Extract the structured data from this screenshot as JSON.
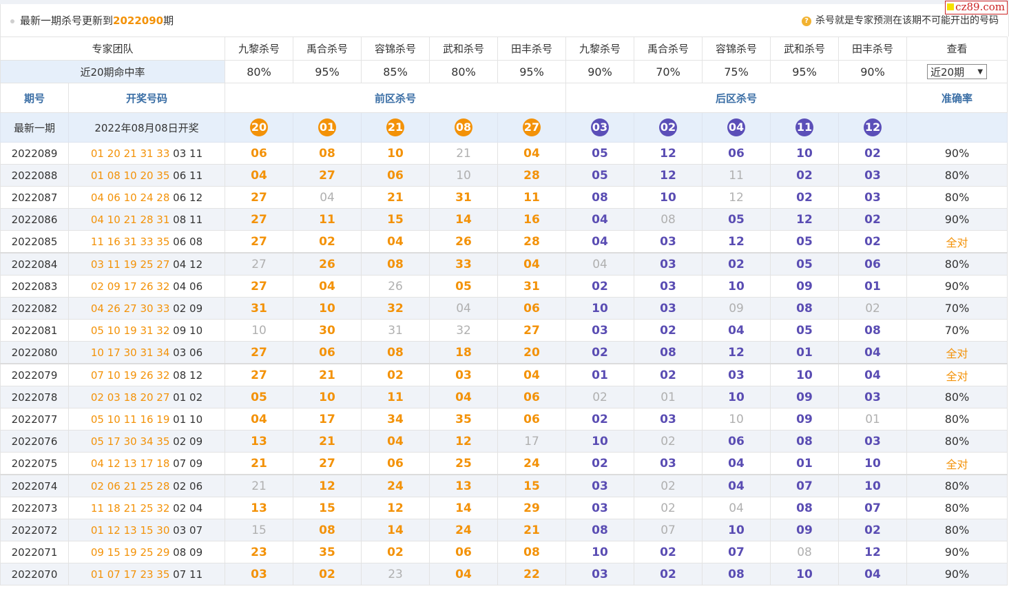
{
  "header": {
    "title_prefix": "最新一期杀号更新到",
    "title_period": "2022090",
    "title_suffix": "期",
    "tip_text": "杀号就是专家预测在该期不可能开出的号码",
    "watermark": "cz89.com"
  },
  "experts_label": "专家团队",
  "experts": [
    "九黎杀号",
    "禹合杀号",
    "容锦杀号",
    "武和杀号",
    "田丰杀号",
    "九黎杀号",
    "禹合杀号",
    "容锦杀号",
    "武和杀号",
    "田丰杀号"
  ],
  "view_label": "查看",
  "hit_label": "近20期命中率",
  "hit_rates": [
    "80%",
    "95%",
    "85%",
    "80%",
    "95%",
    "90%",
    "70%",
    "75%",
    "95%",
    "90%"
  ],
  "period_select": "近20期",
  "columns": {
    "period": "期号",
    "draw": "开奖号码",
    "front": "前区杀号",
    "back": "后区杀号",
    "accuracy": "准确率"
  },
  "current": {
    "label": "最新一期",
    "draw_text": "2022年08月08日开奖",
    "front_kills": [
      "20",
      "01",
      "21",
      "08",
      "27"
    ],
    "back_kills": [
      "03",
      "02",
      "04",
      "11",
      "12"
    ]
  },
  "rows": [
    {
      "period": "2022089",
      "front": "01 20 21 31 33",
      "back": "03 11",
      "kills": [
        "06",
        "08",
        "10",
        "21",
        "04",
        "05",
        "12",
        "06",
        "10",
        "02"
      ],
      "miss": [
        false,
        false,
        false,
        true,
        false,
        false,
        false,
        false,
        false,
        false
      ],
      "acc": "90%"
    },
    {
      "period": "2022088",
      "front": "01 08 10 20 35",
      "back": "06 11",
      "kills": [
        "04",
        "27",
        "06",
        "10",
        "28",
        "05",
        "12",
        "11",
        "02",
        "03"
      ],
      "miss": [
        false,
        false,
        false,
        true,
        false,
        false,
        false,
        true,
        false,
        false
      ],
      "acc": "80%"
    },
    {
      "period": "2022087",
      "front": "04 06 10 24 28",
      "back": "06 12",
      "kills": [
        "27",
        "04",
        "21",
        "31",
        "11",
        "08",
        "10",
        "12",
        "02",
        "03"
      ],
      "miss": [
        false,
        true,
        false,
        false,
        false,
        false,
        false,
        true,
        false,
        false
      ],
      "acc": "80%"
    },
    {
      "period": "2022086",
      "front": "04 10 21 28 31",
      "back": "08 11",
      "kills": [
        "27",
        "11",
        "15",
        "14",
        "16",
        "04",
        "08",
        "05",
        "12",
        "02"
      ],
      "miss": [
        false,
        false,
        false,
        false,
        false,
        false,
        true,
        false,
        false,
        false
      ],
      "acc": "90%"
    },
    {
      "period": "2022085",
      "front": "11 16 31 33 35",
      "back": "06 08",
      "kills": [
        "27",
        "02",
        "04",
        "26",
        "28",
        "04",
        "03",
        "12",
        "05",
        "02"
      ],
      "miss": [
        false,
        false,
        false,
        false,
        false,
        false,
        false,
        false,
        false,
        false
      ],
      "acc": "全对"
    },
    {
      "period": "2022084",
      "front": "03 11 19 25 27",
      "back": "04 12",
      "kills": [
        "27",
        "26",
        "08",
        "33",
        "04",
        "04",
        "03",
        "02",
        "05",
        "06"
      ],
      "miss": [
        true,
        false,
        false,
        false,
        false,
        true,
        false,
        false,
        false,
        false
      ],
      "acc": "80%"
    },
    {
      "period": "2022083",
      "front": "02 09 17 26 32",
      "back": "04 06",
      "kills": [
        "27",
        "04",
        "26",
        "05",
        "31",
        "02",
        "03",
        "10",
        "09",
        "01"
      ],
      "miss": [
        false,
        false,
        true,
        false,
        false,
        false,
        false,
        false,
        false,
        false
      ],
      "acc": "90%"
    },
    {
      "period": "2022082",
      "front": "04 26 27 30 33",
      "back": "02 09",
      "kills": [
        "31",
        "10",
        "32",
        "04",
        "06",
        "10",
        "03",
        "09",
        "08",
        "02"
      ],
      "miss": [
        false,
        false,
        false,
        true,
        false,
        false,
        false,
        true,
        false,
        true
      ],
      "acc": "70%"
    },
    {
      "period": "2022081",
      "front": "05 10 19 31 32",
      "back": "09 10",
      "kills": [
        "10",
        "30",
        "31",
        "32",
        "27",
        "03",
        "02",
        "04",
        "05",
        "08"
      ],
      "miss": [
        true,
        false,
        true,
        true,
        false,
        false,
        false,
        false,
        false,
        false
      ],
      "acc": "70%"
    },
    {
      "period": "2022080",
      "front": "10 17 30 31 34",
      "back": "03 06",
      "kills": [
        "27",
        "06",
        "08",
        "18",
        "20",
        "02",
        "08",
        "12",
        "01",
        "04"
      ],
      "miss": [
        false,
        false,
        false,
        false,
        false,
        false,
        false,
        false,
        false,
        false
      ],
      "acc": "全对"
    },
    {
      "period": "2022079",
      "front": "07 10 19 26 32",
      "back": "08 12",
      "kills": [
        "27",
        "21",
        "02",
        "03",
        "04",
        "01",
        "02",
        "03",
        "10",
        "04"
      ],
      "miss": [
        false,
        false,
        false,
        false,
        false,
        false,
        false,
        false,
        false,
        false
      ],
      "acc": "全对"
    },
    {
      "period": "2022078",
      "front": "02 03 18 20 27",
      "back": "01 02",
      "kills": [
        "05",
        "10",
        "11",
        "04",
        "06",
        "02",
        "01",
        "10",
        "09",
        "03"
      ],
      "miss": [
        false,
        false,
        false,
        false,
        false,
        true,
        true,
        false,
        false,
        false
      ],
      "acc": "80%"
    },
    {
      "period": "2022077",
      "front": "05 10 11 16 19",
      "back": "01 10",
      "kills": [
        "04",
        "17",
        "34",
        "35",
        "06",
        "02",
        "03",
        "10",
        "09",
        "01"
      ],
      "miss": [
        false,
        false,
        false,
        false,
        false,
        false,
        false,
        true,
        false,
        true
      ],
      "acc": "80%"
    },
    {
      "period": "2022076",
      "front": "05 17 30 34 35",
      "back": "02 09",
      "kills": [
        "13",
        "21",
        "04",
        "12",
        "17",
        "10",
        "02",
        "06",
        "08",
        "03"
      ],
      "miss": [
        false,
        false,
        false,
        false,
        true,
        false,
        true,
        false,
        false,
        false
      ],
      "acc": "80%"
    },
    {
      "period": "2022075",
      "front": "04 12 13 17 18",
      "back": "07 09",
      "kills": [
        "21",
        "27",
        "06",
        "25",
        "24",
        "02",
        "03",
        "04",
        "01",
        "10"
      ],
      "miss": [
        false,
        false,
        false,
        false,
        false,
        false,
        false,
        false,
        false,
        false
      ],
      "acc": "全对"
    },
    {
      "period": "2022074",
      "front": "02 06 21 25 28",
      "back": "02 06",
      "kills": [
        "21",
        "12",
        "24",
        "13",
        "15",
        "03",
        "02",
        "04",
        "07",
        "10"
      ],
      "miss": [
        true,
        false,
        false,
        false,
        false,
        false,
        true,
        false,
        false,
        false
      ],
      "acc": "80%"
    },
    {
      "period": "2022073",
      "front": "11 18 21 25 32",
      "back": "02 04",
      "kills": [
        "13",
        "15",
        "12",
        "14",
        "29",
        "03",
        "02",
        "04",
        "08",
        "07"
      ],
      "miss": [
        false,
        false,
        false,
        false,
        false,
        false,
        true,
        true,
        false,
        false
      ],
      "acc": "80%"
    },
    {
      "period": "2022072",
      "front": "01 12 13 15 30",
      "back": "03 07",
      "kills": [
        "15",
        "08",
        "14",
        "24",
        "21",
        "08",
        "07",
        "10",
        "09",
        "02"
      ],
      "miss": [
        true,
        false,
        false,
        false,
        false,
        false,
        true,
        false,
        false,
        false
      ],
      "acc": "80%"
    },
    {
      "period": "2022071",
      "front": "09 15 19 25 29",
      "back": "08 09",
      "kills": [
        "23",
        "35",
        "02",
        "06",
        "08",
        "10",
        "02",
        "07",
        "08",
        "12"
      ],
      "miss": [
        false,
        false,
        false,
        false,
        false,
        false,
        false,
        false,
        true,
        false
      ],
      "acc": "90%"
    },
    {
      "period": "2022070",
      "front": "01 07 17 23 35",
      "back": "07 11",
      "kills": [
        "03",
        "02",
        "23",
        "04",
        "22",
        "03",
        "02",
        "08",
        "10",
        "04"
      ],
      "miss": [
        false,
        false,
        true,
        false,
        false,
        false,
        false,
        false,
        false,
        false
      ],
      "acc": "90%"
    }
  ],
  "colors": {
    "front": "#f39208",
    "back": "#5a4db3",
    "miss": "#b0b0b0",
    "header_blue": "#3a6ea5",
    "row_alt": "#f0f3f8",
    "highlight_row": "#e6effa"
  }
}
